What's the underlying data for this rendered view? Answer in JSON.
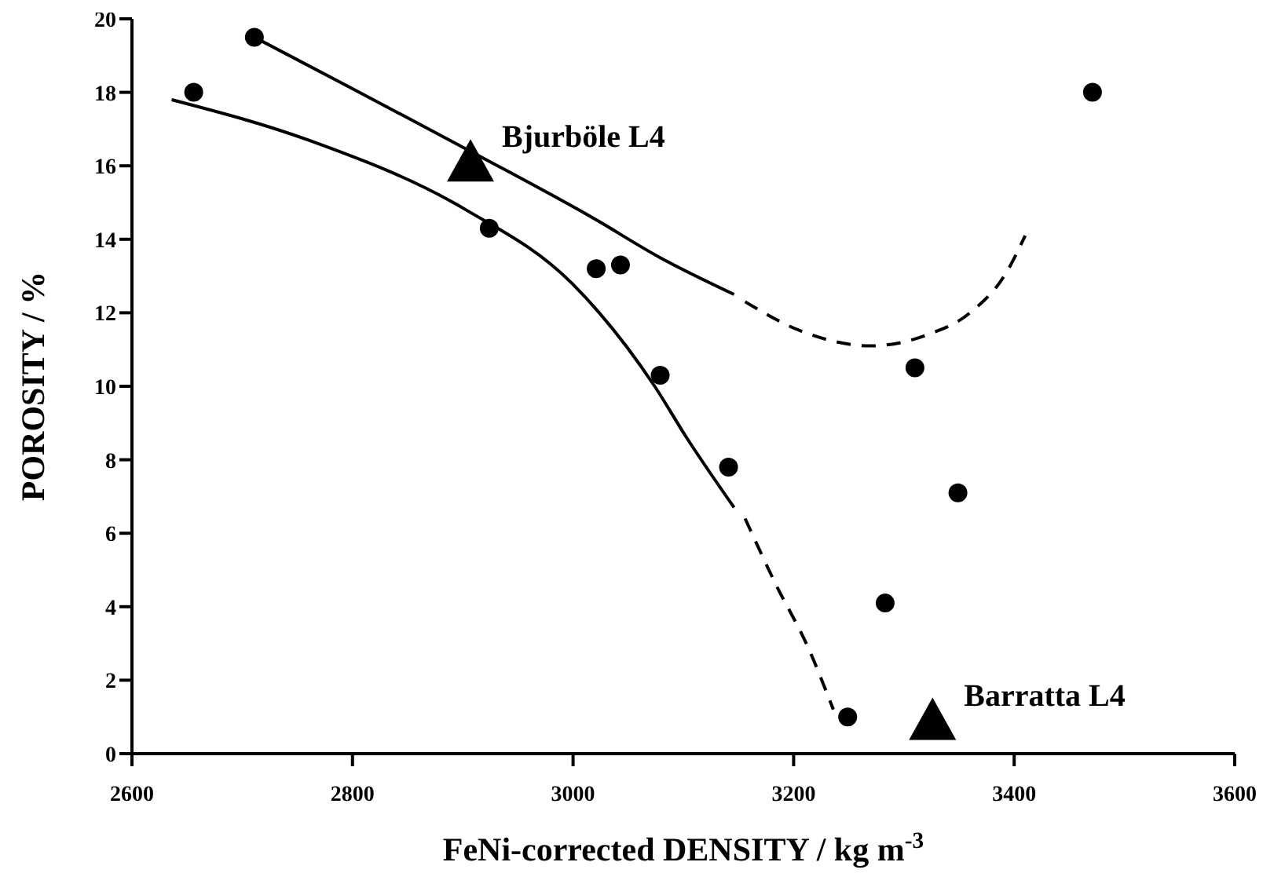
{
  "chart_data": {
    "type": "scatter",
    "xlabel": "FeNi-corrected DENSITY / kg m$^{-3}$",
    "ylabel": "POROSITY / %",
    "xlim": [
      2600,
      3600
    ],
    "xticks": [
      2600,
      2800,
      3000,
      3200,
      3400,
      3600
    ],
    "ylim": [
      0,
      20
    ],
    "yticks": [
      0,
      2,
      4,
      6,
      8,
      10,
      12,
      14,
      16,
      18,
      20
    ],
    "grid": false,
    "legend": false,
    "series": [
      {
        "marker": "circle",
        "color": "#000000",
        "x": [
          2656,
          2711,
          2924,
          3021,
          3043,
          3079,
          3141,
          3249,
          3283,
          3310,
          3349,
          3471
        ],
        "values": [
          18.0,
          19.5,
          14.3,
          13.2,
          13.3,
          10.3,
          7.8,
          1.0,
          4.1,
          10.5,
          7.1,
          18.0
        ]
      },
      {
        "marker": "triangle",
        "color": "#000000",
        "x": [
          2907,
          3326
        ],
        "values": [
          16.0,
          0.8
        ]
      },
      {
        "type": "line",
        "line_style": "solid",
        "color": "#000000",
        "x": [
          2711,
          2800,
          2913,
          3017,
          3079,
          3146
        ],
        "values": [
          19.5,
          18.1,
          16.3,
          14.6,
          13.5,
          12.5
        ]
      },
      {
        "type": "line",
        "line_style": "dashed",
        "color": "#000000",
        "x": [
          3156,
          3207,
          3270,
          3321,
          3360,
          3393,
          3410
        ],
        "values": [
          12.3,
          11.5,
          11.1,
          11.4,
          12.0,
          13.1,
          14.1
        ]
      },
      {
        "type": "line",
        "line_style": "solid",
        "color": "#000000",
        "x": [
          2636,
          2760,
          2903,
          2999,
          3074,
          3103,
          3146
        ],
        "values": [
          17.8,
          16.7,
          14.8,
          12.8,
          10.0,
          8.6,
          6.7
        ]
      },
      {
        "type": "line",
        "line_style": "dashed",
        "color": "#000000",
        "x": [
          3156,
          3184,
          3213,
          3236
        ],
        "values": [
          6.4,
          4.6,
          2.9,
          1.2
        ]
      }
    ],
    "annotations": [
      {
        "text": "Bjurböle L4",
        "x": 2907,
        "y": 16.0
      },
      {
        "text": "Barratta L4",
        "x": 3326,
        "y": 0.8
      }
    ]
  }
}
